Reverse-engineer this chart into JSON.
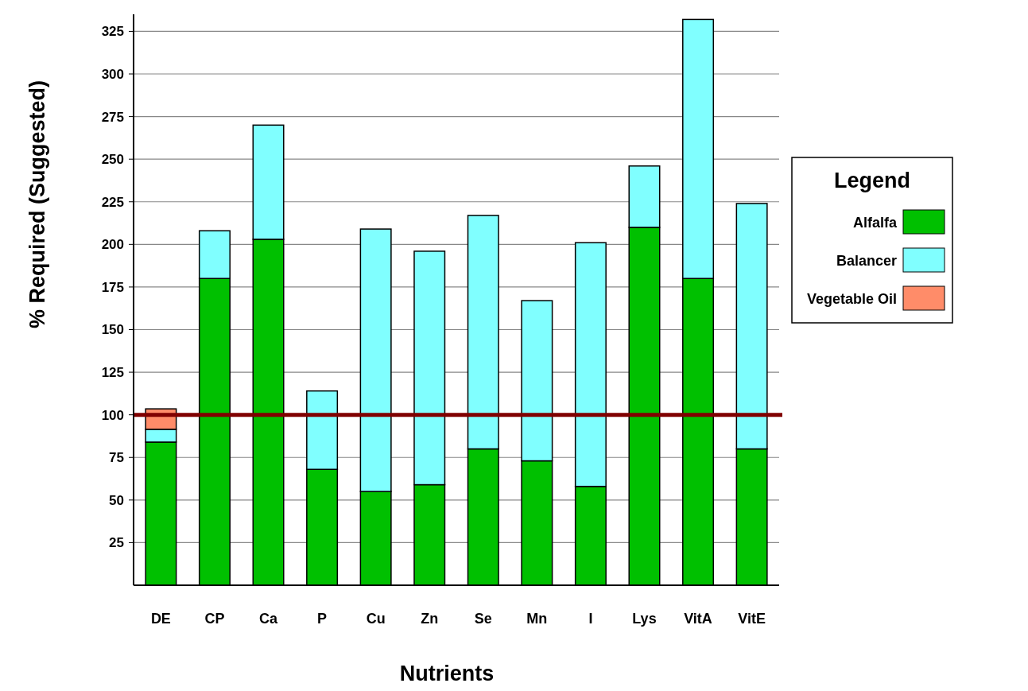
{
  "chart_data": {
    "type": "bar",
    "stacked": true,
    "xlabel": "Nutrients",
    "ylabel": "% Required (Suggested)",
    "legend_title": "Legend",
    "legend": "right",
    "grid": "y",
    "categories": [
      "DE",
      "CP",
      "Ca",
      "P",
      "Cu",
      "Zn",
      "Se",
      "Mn",
      "I",
      "Lys",
      "VitA",
      "VitE"
    ],
    "series": [
      {
        "name": "Alfalfa",
        "color": "#00c000",
        "values": [
          84,
          180,
          203,
          68,
          55,
          59,
          80,
          73,
          58,
          210,
          180,
          80
        ]
      },
      {
        "name": "Balancer",
        "color": "#80ffff",
        "values": [
          7.5,
          28,
          67,
          46,
          154,
          137,
          137,
          94,
          143,
          36,
          152,
          144
        ]
      },
      {
        "name": "Vegetable Oil",
        "color": "#ff8c69",
        "values": [
          12,
          null,
          null,
          null,
          null,
          null,
          null,
          null,
          null,
          null,
          null,
          null
        ]
      }
    ],
    "ylim": [
      0,
      335
    ],
    "yticks": [
      25,
      50,
      75,
      100,
      125,
      150,
      175,
      200,
      225,
      250,
      275,
      300,
      325
    ],
    "ref_lines": [
      {
        "axis": "y",
        "value": 100,
        "color": "#800000"
      }
    ]
  }
}
